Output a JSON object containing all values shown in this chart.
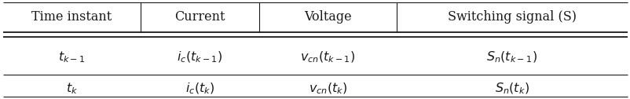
{
  "col_headers": [
    "Time instant",
    "Current",
    "Voltage",
    "Switching signal (S)"
  ],
  "rows": [
    [
      "$t_{k-1}$",
      "$i_c(t_{k-1})$",
      "$v_{cn}(t_{k-1})$",
      "$S_n(t_{k-1})$"
    ],
    [
      "$t_k$",
      "$i_c(t_k)$",
      "$v_{cn}(t_k)$",
      "$S_n(t_k)$"
    ]
  ],
  "col_weights": [
    0.22,
    0.19,
    0.22,
    0.37
  ],
  "header_fontsize": 11.5,
  "cell_fontsize": 11.5,
  "background_color": "#ffffff",
  "line_color": "#1a1a1a",
  "text_color": "#1a1a1a",
  "fig_width": 8.03,
  "fig_height": 1.26,
  "dpi": 100
}
